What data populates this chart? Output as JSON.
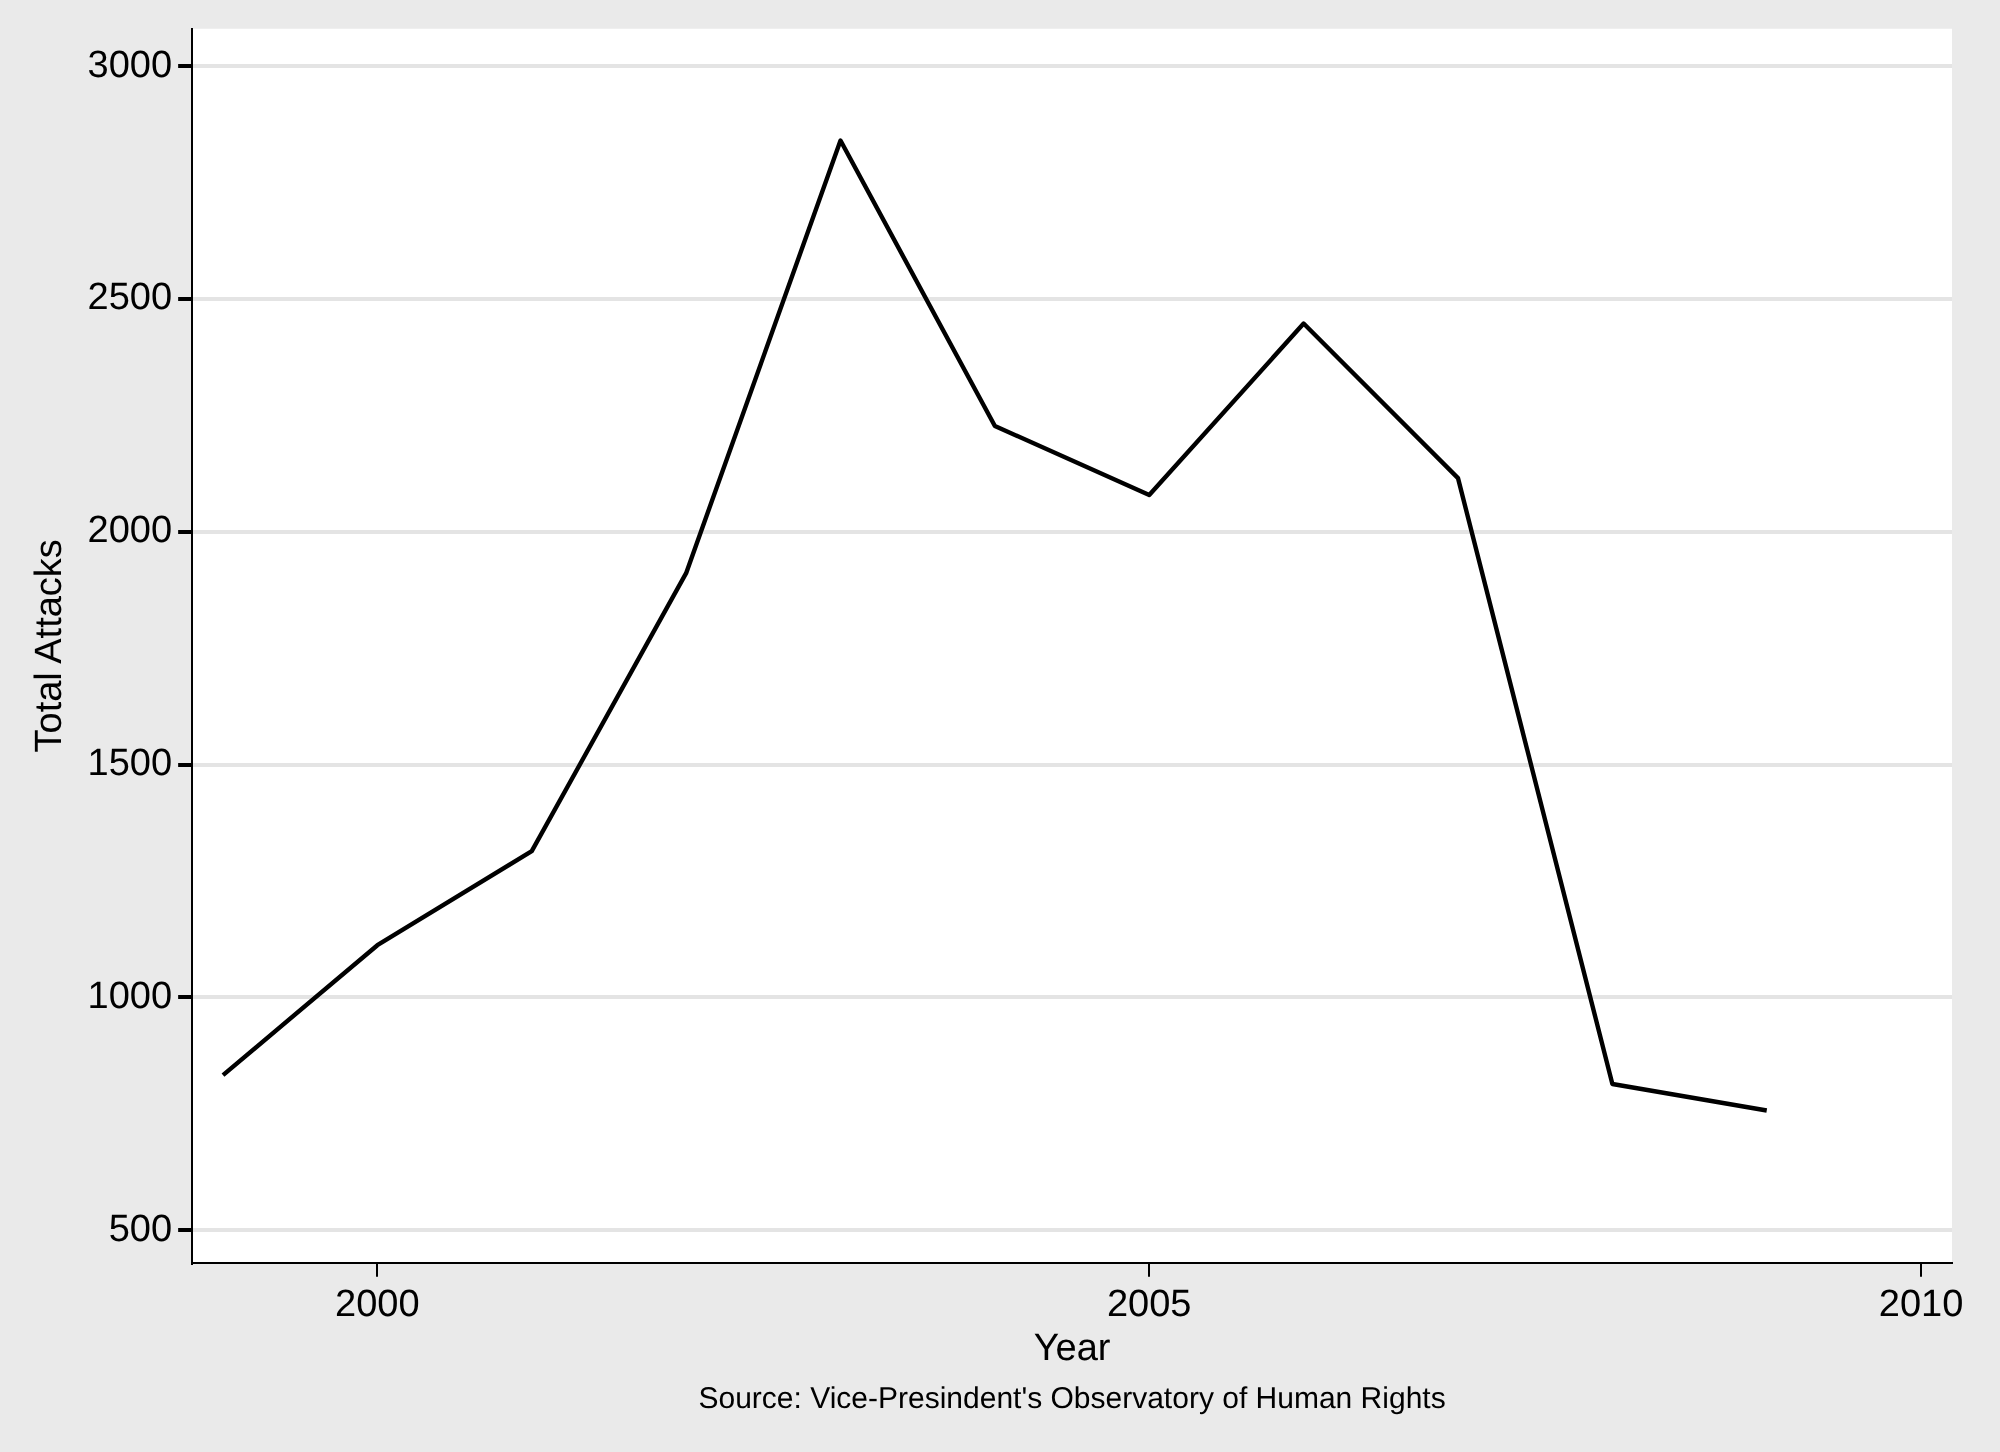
{
  "chart_data": {
    "type": "line",
    "xlabel": "Year",
    "ylabel": "Total Attacks",
    "annotations": [
      "Source: Vice-Presindent's Observatory of Human Rights"
    ],
    "x": [
      1999,
      2000,
      2001,
      2002,
      2003,
      2004,
      2005,
      2006,
      2007,
      2008,
      2009
    ],
    "series": [
      {
        "color": "#000000",
        "values": [
          833,
          1112,
          1314,
          1911,
          2840,
          2227,
          2079,
          2447,
          2115,
          814,
          757
        ]
      }
    ],
    "xlim": [
      1998.8,
      2010.2
    ],
    "xticks": [
      2000,
      2005,
      2010
    ],
    "ylim": [
      430,
      3080
    ],
    "yticks": [
      500,
      1000,
      1500,
      2000,
      2500,
      3000
    ],
    "grid": "y",
    "legend": false,
    "marker": "none",
    "line_style": "solid"
  }
}
